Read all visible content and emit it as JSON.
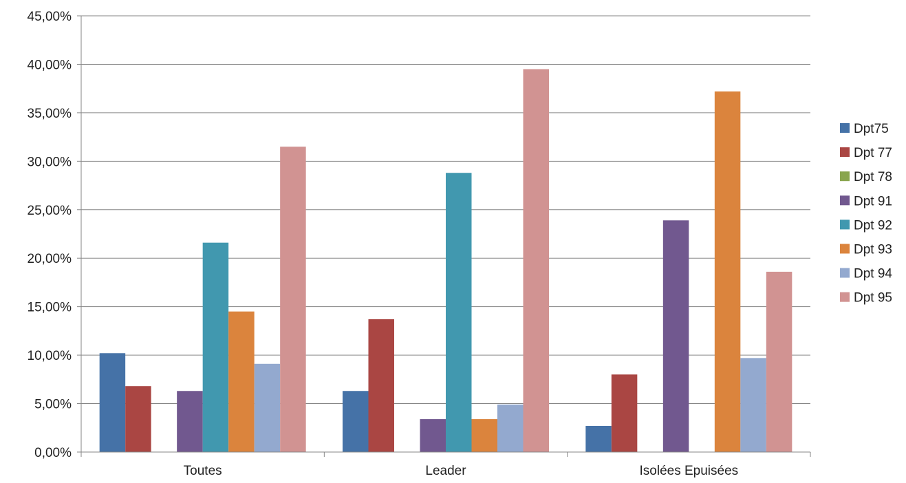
{
  "chart_data": {
    "type": "bar",
    "categories": [
      "Toutes",
      "Leader",
      "Isolées Epuisées"
    ],
    "series": [
      {
        "name": "Dpt75",
        "color": "#4572A7",
        "values": [
          10.2,
          6.3,
          2.7
        ]
      },
      {
        "name": "Dpt 77",
        "color": "#AA4643",
        "values": [
          6.8,
          13.7,
          8.0
        ]
      },
      {
        "name": "Dpt 78",
        "color": "#89A54E",
        "values": [
          0.0,
          0.0,
          0.0
        ]
      },
      {
        "name": "Dpt 91",
        "color": "#71588F",
        "values": [
          6.3,
          3.4,
          23.9
        ]
      },
      {
        "name": "Dpt 92",
        "color": "#4198AF",
        "values": [
          21.6,
          28.8,
          0.0
        ]
      },
      {
        "name": "Dpt 93",
        "color": "#DB843D",
        "values": [
          14.5,
          3.4,
          37.2
        ]
      },
      {
        "name": "Dpt 94",
        "color": "#93A9CF",
        "values": [
          9.1,
          4.9,
          9.7
        ]
      },
      {
        "name": "Dpt 95",
        "color": "#D19392",
        "values": [
          31.5,
          39.5,
          18.6
        ]
      }
    ],
    "ylim": [
      0,
      45
    ],
    "yticks": [
      "0,00%",
      "5,00%",
      "10,00%",
      "15,00%",
      "20,00%",
      "25,00%",
      "30,00%",
      "35,00%",
      "40,00%",
      "45,00%"
    ],
    "grid": true,
    "legend_position": "right",
    "gridline_color": "#868686",
    "axis_color": "#868686"
  }
}
